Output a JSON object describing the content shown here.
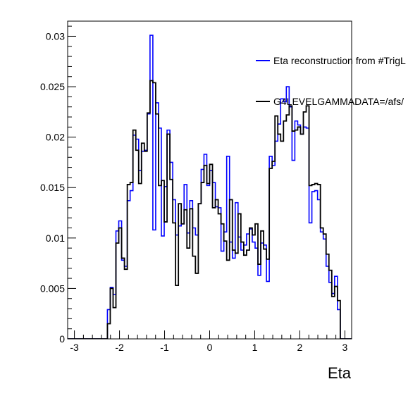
{
  "chart_data": {
    "type": "line",
    "title": "",
    "xlabel": "Eta",
    "ylabel": "",
    "xlim": [
      -3.15,
      3.15
    ],
    "ylim": [
      0,
      0.0315
    ],
    "bin_edges_start": -3.15,
    "bin_width": 0.063,
    "xticks": [
      -3,
      -2,
      -1,
      0,
      1,
      2,
      3
    ],
    "xtick_labels": [
      "-3",
      "-2",
      "-1",
      "0",
      "1",
      "2",
      "3"
    ],
    "yticks": [
      0,
      0.005,
      0.01,
      0.015,
      0.02,
      0.025,
      0.03
    ],
    "ytick_labels": [
      "0",
      "0.005",
      "0.01",
      "0.015",
      "0.02",
      "0.025",
      "0.03"
    ],
    "grid": false,
    "legend_position": "top-right",
    "series": [
      {
        "name": "Eta reconstruction from #TrigL",
        "color": "#0000ff",
        "values": [
          0,
          0,
          0,
          0,
          0,
          0,
          0,
          0,
          0,
          0,
          0,
          0,
          0,
          0,
          0.0029,
          0.0051,
          0.0044,
          0.0107,
          0.0117,
          0.0078,
          0.0072,
          0.0137,
          0.0147,
          0.0202,
          0.0198,
          0.0167,
          0.0186,
          0.0187,
          0.0223,
          0.0301,
          0.0108,
          0.0234,
          0.0209,
          0.0102,
          0.0151,
          0.0207,
          0.0175,
          0.0138,
          0.0103,
          0.0112,
          0.0114,
          0.0153,
          0.0105,
          0.0137,
          0.011,
          0.0103,
          0.0134,
          0.0168,
          0.0183,
          0.0152,
          0.0167,
          0.0155,
          0.0131,
          0.013,
          0.0087,
          0.0106,
          0.0181,
          0.0096,
          0.008,
          0.0135,
          0.0101,
          0.0088,
          0.0093,
          0.0104,
          0.0109,
          0.0096,
          0.009,
          0.0063,
          0.0095,
          0.0093,
          0.0057,
          0.0181,
          0.0172,
          0.0196,
          0.0213,
          0.0238,
          0.0235,
          0.025,
          0.023,
          0.0177,
          0.0216,
          0.0212,
          0.0203,
          0.021,
          0.0209,
          0.0115,
          0.0146,
          0.0147,
          0.0138,
          0.0106,
          0.0099,
          0.0072,
          0.0056,
          0.0045,
          0.0062,
          0.0029,
          0,
          0,
          0,
          0,
          0
        ]
      },
      {
        "name": "G4LEVELGAMMADATA=/afs/",
        "color": "#000000",
        "values": [
          0,
          0,
          0,
          0,
          0,
          0,
          0,
          0,
          0,
          0,
          0,
          0,
          0,
          0,
          0.0015,
          0.005,
          0.0031,
          0.0095,
          0.011,
          0.008,
          0.0069,
          0.0153,
          0.0155,
          0.0207,
          0.0187,
          0.0154,
          0.0194,
          0.0186,
          0.0224,
          0.0256,
          0.0254,
          0.0223,
          0.0152,
          0.0157,
          0.0116,
          0.0203,
          0.0158,
          0.0115,
          0.0053,
          0.0134,
          0.0114,
          0.0128,
          0.009,
          0.0129,
          0.0082,
          0.0065,
          0.0134,
          0.0155,
          0.0172,
          0.0154,
          0.0173,
          0.013,
          0.0138,
          0.0124,
          0.0114,
          0.0097,
          0.0078,
          0.0138,
          0.0088,
          0.0085,
          0.0124,
          0.0096,
          0.0083,
          0.0088,
          0.011,
          0.0103,
          0.0114,
          0.0074,
          0.0107,
          0.0089,
          0.0079,
          0.0169,
          0.0176,
          0.0221,
          0.0203,
          0.0196,
          0.0216,
          0.0222,
          0.0231,
          0.0206,
          0.0207,
          0.021,
          0.0203,
          0.0225,
          0.0231,
          0.0152,
          0.0153,
          0.0154,
          0.0153,
          0.011,
          0.0104,
          0.0084,
          0.0068,
          0.0042,
          0.0052,
          0.0038,
          0,
          0,
          0,
          0,
          0
        ]
      }
    ]
  }
}
